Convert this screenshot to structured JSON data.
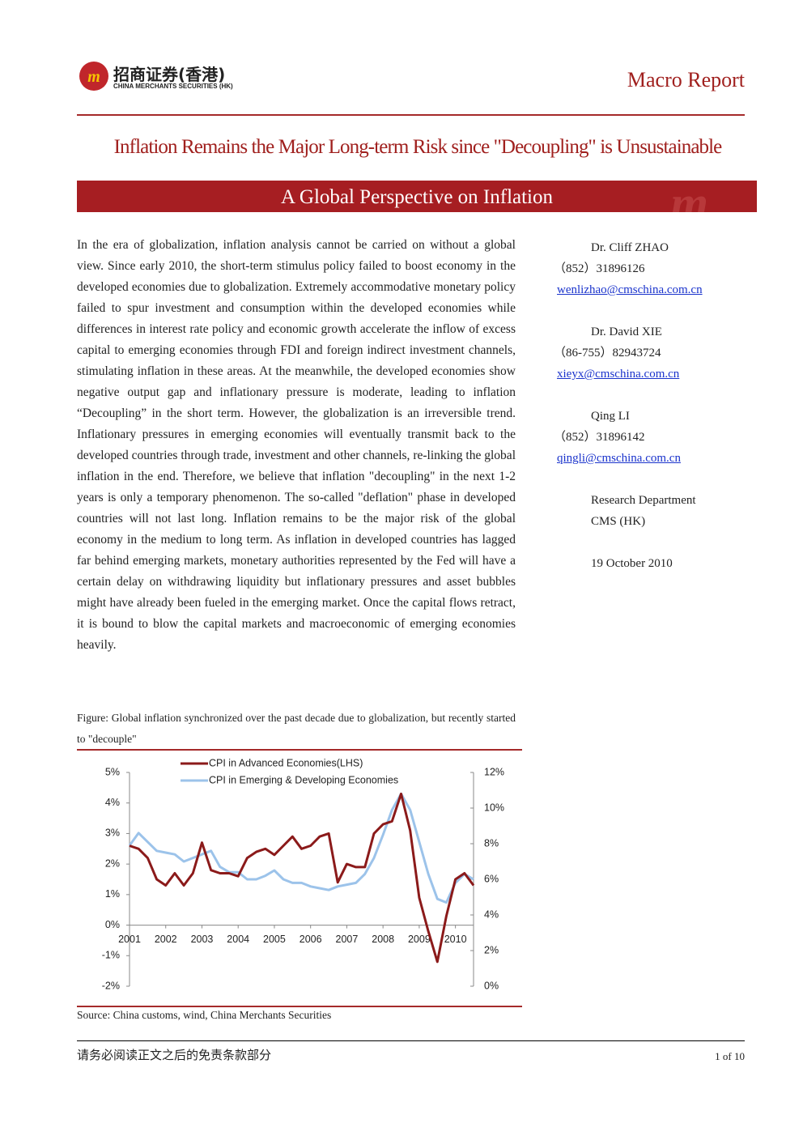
{
  "header": {
    "logo_cn": "招商证券(香港)",
    "logo_en": "CHINA MERCHANTS SECURITIES (HK)",
    "report_type": "Macro Report"
  },
  "title": "Inflation Remains the Major Long-term Risk since \"Decoupling\" is Unsustainable",
  "banner": "A Global Perspective on Inflation",
  "body": "In the era of globalization, inflation analysis cannot be carried on without a global view. Since early 2010, the short-term stimulus policy failed to boost economy in the developed economies due to globalization. Extremely accommodative monetary policy failed to spur investment and consumption within the developed economies while differences in interest rate policy and economic growth accelerate the inflow of excess capital to emerging economies through FDI and foreign indirect investment channels, stimulating inflation in these areas. At the meanwhile, the developed economies show negative output gap and inflationary pressure is moderate, leading to inflation “Decoupling” in the short term. However, the globalization is an irreversible trend. Inflationary pressures in emerging economies will eventually transmit back to the developed countries through trade, investment and other channels, re-linking the global inflation in the end. Therefore, we believe that inflation \"decoupling\" in the next 1-2 years is only a temporary phenomenon. The so-called \"deflation\" phase in developed countries will not last long. Inflation remains to be the major risk of the global economy in the medium to long term. As inflation in developed countries has lagged far behind emerging markets, monetary authorities represented by the Fed will have a certain delay on withdrawing liquidity but inflationary pressures and asset bubbles might have already been fueled in the emerging market. Once the capital flows retract, it is bound to blow the capital markets and macroeconomic of emerging economies heavily.",
  "sidebar": {
    "authors": [
      {
        "name": "Dr. Cliff ZHAO",
        "phone": "（852）31896126",
        "email": "wenlizhao@cmschina.com.cn"
      },
      {
        "name": "Dr. David XIE",
        "phone": "（86-755）82943724",
        "email": "xieyx@cmschina.com.cn"
      },
      {
        "name": "Qing LI",
        "phone": "（852）31896142",
        "email": "qingli@cmschina.com.cn"
      }
    ],
    "department": [
      "Research Department",
      "CMS (HK)"
    ],
    "date": "19 October 2010"
  },
  "figure": {
    "caption": "Figure: Global inflation synchronized over the past decade due to globalization, but recently started to \"decouple\"",
    "source": "Source: China customs, wind, China Merchants Securities"
  },
  "chart_data": {
    "type": "line",
    "x": [
      2001,
      2001.25,
      2001.5,
      2001.75,
      2002,
      2002.25,
      2002.5,
      2002.75,
      2003,
      2003.25,
      2003.5,
      2003.75,
      2004,
      2004.25,
      2004.5,
      2004.75,
      2005,
      2005.25,
      2005.5,
      2005.75,
      2006,
      2006.25,
      2006.5,
      2006.75,
      2007,
      2007.25,
      2007.5,
      2007.75,
      2008,
      2008.25,
      2008.5,
      2008.75,
      2009,
      2009.25,
      2009.5,
      2009.75,
      2010,
      2010.25,
      2010.5
    ],
    "series": [
      {
        "name": "CPI in Advanced Economies(LHS)",
        "color": "#8b1a1a",
        "values": [
          2.6,
          2.5,
          2.2,
          1.5,
          1.3,
          1.7,
          1.3,
          1.7,
          2.7,
          1.8,
          1.7,
          1.7,
          1.6,
          2.2,
          2.4,
          2.5,
          2.3,
          2.6,
          2.9,
          2.5,
          2.6,
          2.9,
          3.0,
          1.4,
          2.0,
          1.9,
          1.9,
          3.0,
          3.3,
          3.4,
          4.3,
          3.1,
          0.9,
          -0.2,
          -1.2,
          0.3,
          1.5,
          1.7,
          1.3
        ]
      },
      {
        "name": "CPI in Emerging & Developing Economies",
        "color": "#9cc3ea",
        "axis": "y2",
        "values": [
          7.9,
          8.6,
          8.1,
          7.6,
          7.5,
          7.4,
          7.0,
          7.2,
          7.4,
          7.6,
          6.7,
          6.4,
          6.4,
          6.0,
          6.0,
          6.2,
          6.5,
          6.0,
          5.8,
          5.8,
          5.6,
          5.5,
          5.4,
          5.6,
          5.7,
          5.8,
          6.3,
          7.2,
          8.5,
          9.9,
          10.8,
          9.9,
          8.1,
          6.3,
          4.9,
          4.7,
          5.8,
          6.3,
          6.0
        ]
      }
    ],
    "xlim": [
      2001,
      2010.5
    ],
    "xticks": [
      2001,
      2002,
      2003,
      2004,
      2005,
      2006,
      2007,
      2008,
      2009,
      2010
    ],
    "ylim": [
      -2,
      5
    ],
    "yticks": [
      {
        "value": -2,
        "label": "-2%"
      },
      {
        "value": -1,
        "label": "-1%"
      },
      {
        "value": 0,
        "label": "0%"
      },
      {
        "value": 1,
        "label": "1%"
      },
      {
        "value": 2,
        "label": "2%"
      },
      {
        "value": 3,
        "label": "3%"
      },
      {
        "value": 4,
        "label": "4%"
      },
      {
        "value": 5,
        "label": "5%"
      }
    ],
    "y2lim": [
      0,
      12
    ],
    "y2ticks": [
      {
        "value": 0,
        "label": "0%"
      },
      {
        "value": 2,
        "label": "2%"
      },
      {
        "value": 4,
        "label": "4%"
      },
      {
        "value": 6,
        "label": "6%"
      },
      {
        "value": 8,
        "label": "8%"
      },
      {
        "value": 10,
        "label": "10%"
      },
      {
        "value": 12,
        "label": "12%"
      }
    ],
    "grid": false
  },
  "footer": {
    "disclaimer": "请务必阅读正文之后的免责条款部分",
    "page": "1 of 10"
  }
}
